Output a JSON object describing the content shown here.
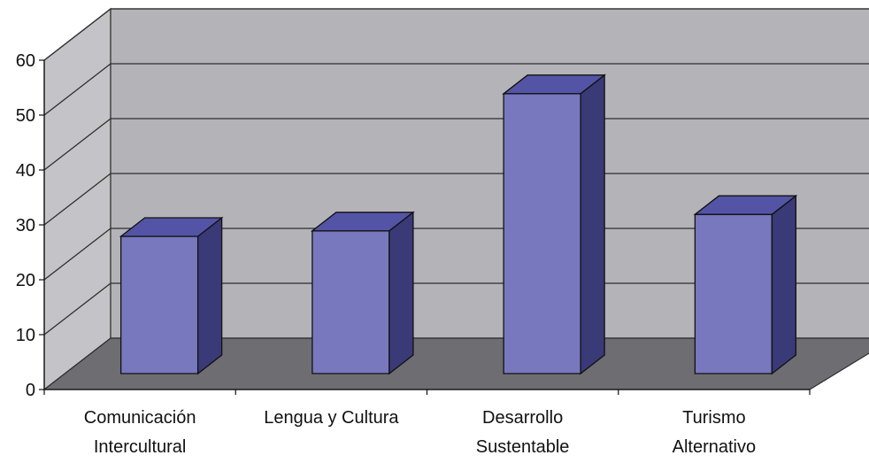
{
  "chart_data": {
    "type": "bar",
    "categories": [
      [
        "Comunicación",
        "Intercultural"
      ],
      [
        "Lengua y Cultura"
      ],
      [
        "Desarrollo",
        "Sustentable"
      ],
      [
        "Turismo",
        "Alternativo"
      ]
    ],
    "values": [
      25,
      26,
      51,
      29
    ],
    "title": "",
    "xlabel": "",
    "ylabel": "",
    "ylim": [
      0,
      60
    ],
    "yticks": [
      "0",
      "10",
      "20",
      "30",
      "40",
      "50",
      "60"
    ],
    "grid": true,
    "legend": "none",
    "style": "3d-column"
  },
  "colors": {
    "bar_front": "#7878BE",
    "bar_top": "#5454A6",
    "bar_side": "#3A3A78",
    "back_wall": "#B4B4B8",
    "side_wall": "#C4C4C8",
    "floor": "#6E6E72",
    "grid": "#2E2E2E"
  }
}
